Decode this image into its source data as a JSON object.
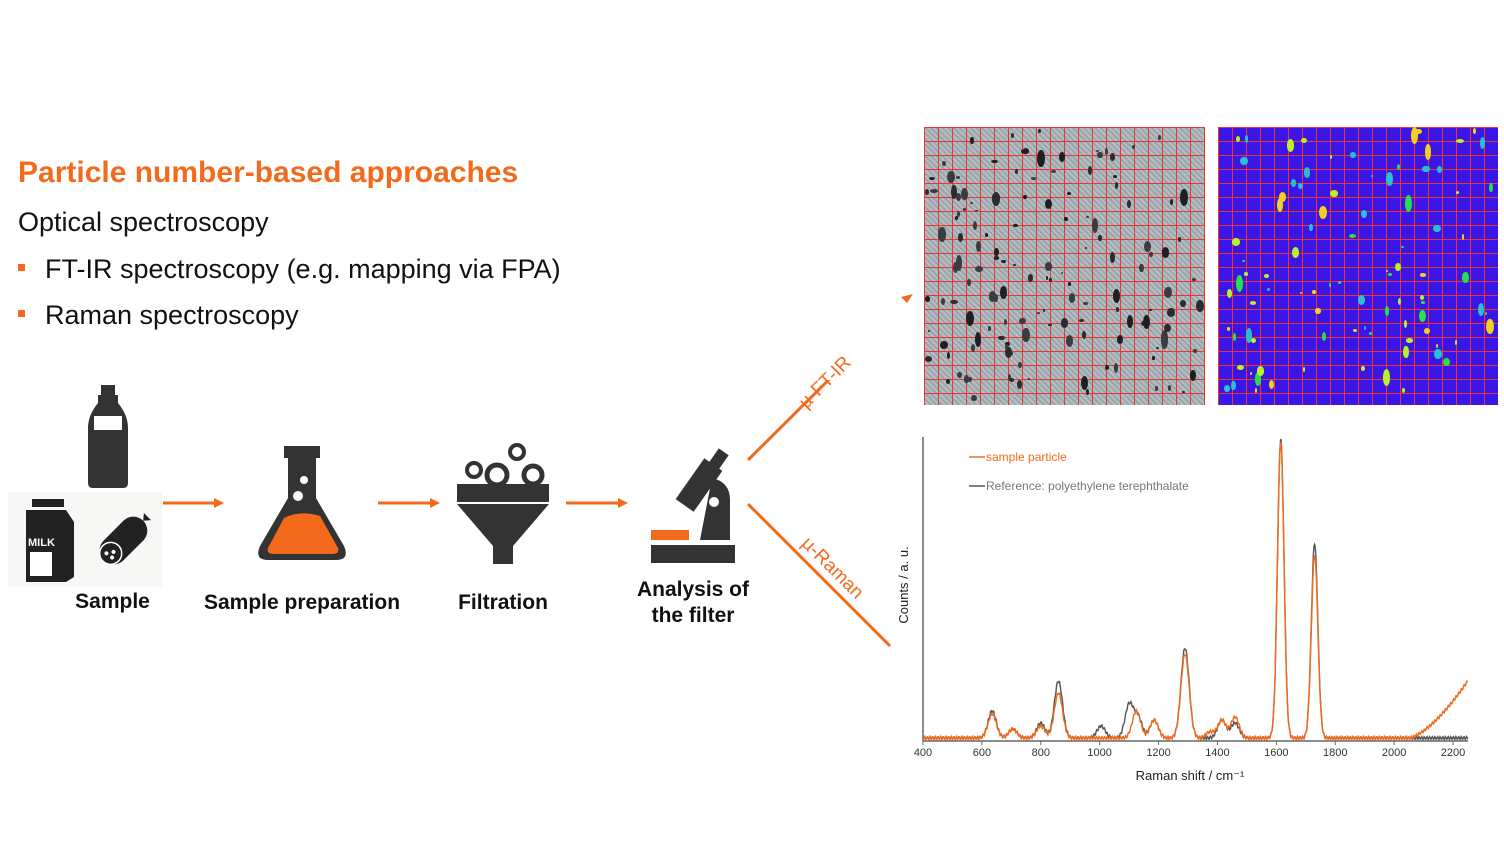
{
  "title": "Particle number-based approaches",
  "subtitle": "Optical spectroscopy",
  "bullets": [
    "FT-IR spectroscopy (e.g. mapping via FPA)",
    "Raman spectroscopy"
  ],
  "workflow": {
    "steps": [
      {
        "label": "Sample",
        "icons": [
          "bottle-icon",
          "milk-carton-icon",
          "sausage-icon"
        ]
      },
      {
        "label": "Sample preparation",
        "icons": [
          "flask-icon"
        ]
      },
      {
        "label": "Filtration",
        "icons": [
          "funnel-icon"
        ]
      },
      {
        "label": "Analysis of\nthe filter",
        "label_line1": "Analysis of",
        "label_line2": "the filter",
        "icons": [
          "microscope-icon"
        ]
      }
    ],
    "branches": {
      "ftir": "µ-FT-IR",
      "raman": "µ-Raman"
    },
    "icon_text": {
      "milk": "MILK"
    }
  },
  "colors": {
    "accent": "#f26b1d",
    "icon": "#333333",
    "reference_line": "#555555",
    "map_grid": "#e33333",
    "map_background": "#3a16e6"
  },
  "chart_data": {
    "type": "line",
    "xlabel": "Raman shift / cm⁻¹",
    "ylabel": "Counts / a. u.",
    "xlim": [
      400,
      2250
    ],
    "ylim": [
      0,
      1
    ],
    "xticks": [
      "400",
      "600",
      "800",
      "1000",
      "1200",
      "1400",
      "1600",
      "1800",
      "2000",
      "2200"
    ],
    "legend_placement": "top-left",
    "series": [
      {
        "name": "sample particle",
        "color": "#f26b1d",
        "peaks": [
          [
            635,
            0.08
          ],
          [
            705,
            0.03
          ],
          [
            800,
            0.04
          ],
          [
            860,
            0.15
          ],
          [
            1125,
            0.09
          ],
          [
            1185,
            0.06
          ],
          [
            1290,
            0.28
          ],
          [
            1375,
            0.02
          ],
          [
            1415,
            0.06
          ],
          [
            1460,
            0.07
          ],
          [
            1615,
            0.99
          ],
          [
            1730,
            0.61
          ]
        ],
        "rising_background": {
          "start": 2050,
          "end_value": 0.19
        }
      },
      {
        "name": "Reference: polyethylene terephthalate",
        "color": "#555555",
        "peaks": [
          [
            635,
            0.09
          ],
          [
            705,
            0.03
          ],
          [
            800,
            0.05
          ],
          [
            860,
            0.19
          ],
          [
            1005,
            0.04
          ],
          [
            1100,
            0.11
          ],
          [
            1130,
            0.07
          ],
          [
            1185,
            0.06
          ],
          [
            1290,
            0.3
          ],
          [
            1415,
            0.06
          ],
          [
            1460,
            0.05
          ],
          [
            1615,
            1.0
          ],
          [
            1730,
            0.65
          ]
        ]
      }
    ]
  }
}
